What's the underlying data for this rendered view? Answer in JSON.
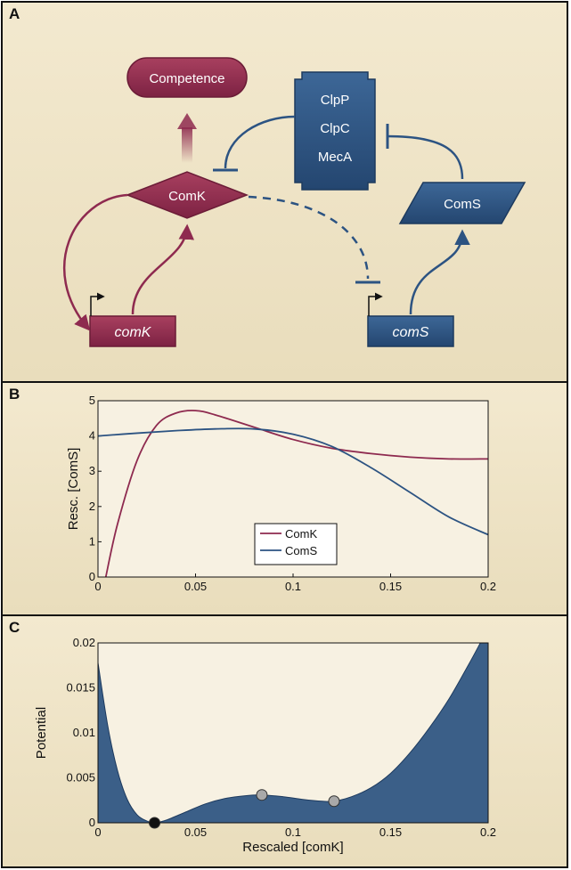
{
  "panels": {
    "a": {
      "letter": "A",
      "nodes": {
        "competence": "Competence",
        "comk_protein": "ComK",
        "clp_complex": [
          "ClpP",
          "ClpC",
          "MecA"
        ],
        "coms_protein": "ComS",
        "comk_gene": "comK",
        "coms_gene": "comS"
      }
    },
    "b": {
      "letter": "B"
    },
    "c": {
      "letter": "C"
    }
  },
  "colors": {
    "comk": "#8e2a4f",
    "coms": "#2c5382",
    "potential_fill": "#3b5f88",
    "background": "#f1e6c8"
  },
  "chart_data": [
    {
      "type": "line",
      "panel": "B",
      "xlabel": "",
      "ylabel": "Resc. [ComS]",
      "xlim": [
        0,
        0.2
      ],
      "ylim": [
        0,
        5
      ],
      "x_ticks": [
        "0",
        "0.05",
        "0.1",
        "0.15",
        "0.2"
      ],
      "y_ticks": [
        "0",
        "1",
        "2",
        "3",
        "4",
        "5"
      ],
      "legend_position": "bottom-center",
      "series": [
        {
          "name": "ComK",
          "color": "#8e2a4f",
          "x": [
            0.004,
            0.01,
            0.02,
            0.03,
            0.04,
            0.05,
            0.06,
            0.08,
            0.1,
            0.12,
            0.14,
            0.16,
            0.18,
            0.2
          ],
          "y": [
            0,
            1.5,
            3.3,
            4.3,
            4.65,
            4.72,
            4.6,
            4.25,
            3.9,
            3.65,
            3.5,
            3.4,
            3.35,
            3.35
          ]
        },
        {
          "name": "ComS",
          "color": "#2c5382",
          "x": [
            0,
            0.02,
            0.04,
            0.06,
            0.08,
            0.1,
            0.12,
            0.14,
            0.16,
            0.18,
            0.2
          ],
          "y": [
            4.0,
            4.08,
            4.15,
            4.2,
            4.2,
            4.05,
            3.7,
            3.1,
            2.4,
            1.7,
            1.2
          ]
        }
      ]
    },
    {
      "type": "area",
      "panel": "C",
      "xlabel": "Rescaled [comK]",
      "ylabel": "Potential",
      "xlim": [
        0,
        0.2
      ],
      "ylim": [
        0,
        0.02
      ],
      "x_ticks": [
        "0",
        "0.05",
        "0.1",
        "0.15",
        "0.2"
      ],
      "y_ticks": [
        "0",
        "0.005",
        "0.01",
        "0.015",
        "0.02"
      ],
      "series": [
        {
          "name": "",
          "x": [
            0,
            0.005,
            0.01,
            0.015,
            0.02,
            0.025,
            0.029,
            0.035,
            0.045,
            0.055,
            0.065,
            0.075,
            0.084,
            0.095,
            0.105,
            0.115,
            0.121,
            0.13,
            0.14,
            0.15,
            0.16,
            0.17,
            0.18,
            0.19,
            0.196
          ],
          "y": [
            0.0178,
            0.0108,
            0.0058,
            0.0026,
            0.0009,
            0.0002,
            0.0,
            0.0003,
            0.0012,
            0.0021,
            0.0027,
            0.003,
            0.0031,
            0.0029,
            0.0026,
            0.0024,
            0.0024,
            0.0029,
            0.0039,
            0.0055,
            0.0078,
            0.0106,
            0.0138,
            0.0176,
            0.02
          ]
        }
      ],
      "points": [
        {
          "x": 0.029,
          "y": 0.0,
          "kind": "stable",
          "color": "#111111"
        },
        {
          "x": 0.084,
          "y": 0.0031,
          "kind": "unstable",
          "color": "#a9a9a9"
        },
        {
          "x": 0.121,
          "y": 0.0024,
          "kind": "stable",
          "color": "#a9a9a9"
        }
      ]
    }
  ]
}
